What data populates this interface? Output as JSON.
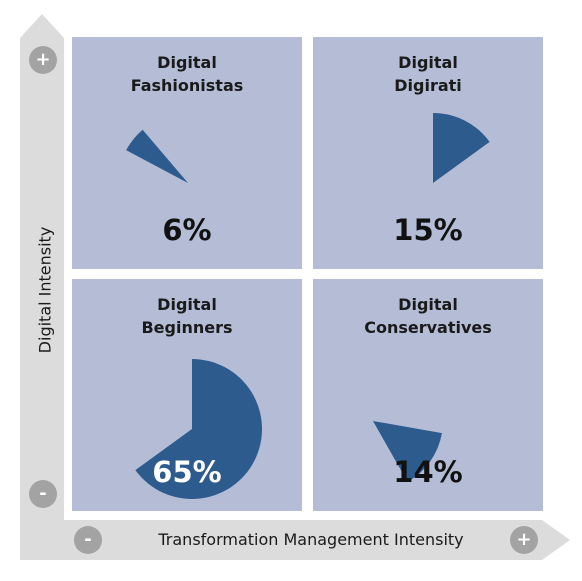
{
  "chart_data": {
    "type": "pie",
    "title": "",
    "xlabel": "Transformation Management Intensity",
    "ylabel": "Digital Intensity",
    "x_axis_markers": {
      "low": "-",
      "high": "+"
    },
    "y_axis_markers": {
      "low": "-",
      "high": "+"
    },
    "quadrants": [
      {
        "id": "fashionistas",
        "title_line1": "Digital",
        "title_line2": "Fashionistas",
        "value": 6,
        "label": "6%",
        "position": "top-left"
      },
      {
        "id": "digirati",
        "title_line1": "Digital",
        "title_line2": "Digirati",
        "value": 15,
        "label": "15%",
        "position": "top-right"
      },
      {
        "id": "beginners",
        "title_line1": "Digital",
        "title_line2": "Beginners",
        "value": 65,
        "label": "65%",
        "position": "bottom-left"
      },
      {
        "id": "conservatives",
        "title_line1": "Digital",
        "title_line2": "Conservatives",
        "value": 14,
        "label": "14%",
        "position": "bottom-right"
      }
    ],
    "colors": {
      "quadrant_bg": "#b4bcd6",
      "slice": "#2d5b8e",
      "axis_arrow": "#dcdcdc",
      "marker_circle": "#a3a3a3"
    }
  }
}
